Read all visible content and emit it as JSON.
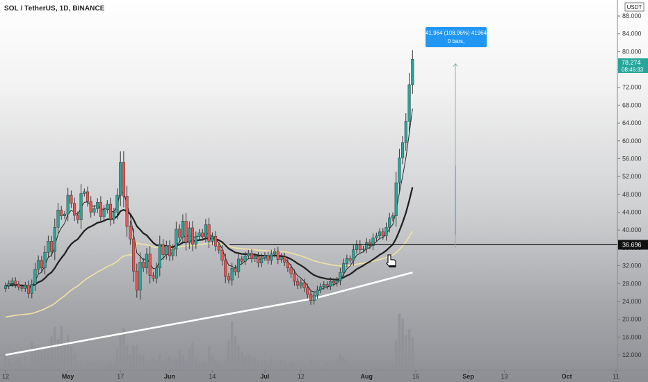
{
  "header": {
    "title": "SOL / TetherUS, 1D, BINANCE"
  },
  "price_axis": {
    "currency_badge": "USDT"
  },
  "measure_tooltip": {
    "line1": "41.964 (108.96%) 41964",
    "line2": "0 bars,"
  },
  "last_price_badge": {
    "price": "78.274",
    "countdown": "08:46:33"
  },
  "level_badge": {
    "value": "36.696"
  },
  "colors": {
    "up": "#26a69a",
    "down": "#ef5350",
    "ma_fast": "#2a2a2a",
    "ma_mid": "#222222",
    "ma_yellow": "#f2e3a1",
    "ma_white": "#ffffff",
    "tooltip_bg": "#2196f3",
    "last_price_bg": "#26a69a",
    "volume": "#8f9196"
  },
  "chart_data": {
    "type": "candlestick",
    "title": "SOL / TetherUS, 1D, BINANCE",
    "ylim": [
      8,
      92
    ],
    "y_ticks": [
      12,
      16,
      20,
      24,
      28,
      32,
      36,
      40,
      44,
      48,
      52,
      56,
      60,
      64,
      68,
      72,
      76,
      80,
      84,
      88
    ],
    "y_tick_labels": [
      "12.000",
      "16.000",
      "20.000",
      "24.000",
      "28.000",
      "32.000",
      "36.000",
      "40.000",
      "44.000",
      "48.000",
      "52.000",
      "56.000",
      "60.000",
      "64.000",
      "68.000",
      "72.000",
      "76.000",
      "80.000",
      "84.000",
      "88.000"
    ],
    "x_labels": [
      {
        "text": "12",
        "day": 0,
        "bold": false
      },
      {
        "text": "May",
        "day": 19,
        "bold": true
      },
      {
        "text": "17",
        "day": 35,
        "bold": false
      },
      {
        "text": "Jun",
        "day": 50,
        "bold": true
      },
      {
        "text": "14",
        "day": 63,
        "bold": false
      },
      {
        "text": "Jul",
        "day": 79,
        "bold": true
      },
      {
        "text": "12",
        "day": 90,
        "bold": false
      },
      {
        "text": "Aug",
        "day": 110,
        "bold": true
      },
      {
        "text": "16",
        "day": 125,
        "bold": false
      },
      {
        "text": "Sep",
        "day": 141,
        "bold": true
      },
      {
        "text": "13",
        "day": 152,
        "bold": false
      },
      {
        "text": "Oct",
        "day": 171,
        "bold": true
      },
      {
        "text": "11",
        "day": 186,
        "bold": false
      }
    ],
    "close_prices": [
      27.5,
      28.0,
      28.6,
      27.8,
      27.2,
      26.9,
      27.6,
      25.8,
      27.8,
      31.2,
      33.2,
      31.5,
      35.0,
      37.5,
      35.2,
      40.6,
      44.5,
      43.2,
      43.6,
      47.8,
      46.0,
      43.3,
      42.3,
      48.2,
      48.6,
      46.4,
      44.0,
      44.8,
      46.2,
      43.0,
      44.6,
      45.8,
      42.4,
      44.0,
      47.8,
      55.2,
      47.6,
      40.8,
      38.0,
      30.8,
      26.5,
      32.8,
      31.5,
      34.6,
      29.8,
      29.2,
      31.5,
      36.8,
      34.5,
      36.5,
      34.2,
      35.8,
      40.2,
      38.4,
      42.0,
      37.2,
      40.5,
      36.8,
      38.6,
      39.4,
      38.5,
      41.2,
      37.5,
      38.6,
      36.4,
      35.5,
      33.2,
      29.6,
      28.8,
      31.4,
      30.6,
      33.5,
      33.0,
      34.2,
      34.8,
      33.6,
      34.1,
      32.6,
      33.8,
      34.3,
      33.2,
      34.6,
      35.2,
      33.4,
      34.0,
      32.8,
      31.5,
      30.2,
      28.5,
      27.6,
      28.2,
      27.0,
      25.6,
      24.2,
      25.4,
      26.6,
      27.3,
      27.8,
      27.4,
      28.5,
      28.1,
      28.7,
      30.5,
      32.5,
      33.6,
      33.2,
      35.6,
      36.8,
      35.6,
      35.8,
      37.2,
      36.5,
      38.2,
      38.7,
      39.6,
      38.7,
      40.6,
      42.7,
      43.2,
      50.6,
      56.2,
      59.6,
      64.4,
      72.6,
      78.3
    ],
    "volumes": [
      2.2,
      1.6,
      1.2,
      1.4,
      1.9,
      1.1,
      2.1,
      1.3,
      4.3,
      3.7,
      3.2,
      2.9,
      3.4,
      3.5,
      5.1,
      6.6,
      4.7,
      6.7,
      4.2,
      5.3,
      3.6,
      2.4,
      1.4,
      1.0,
      0.9,
      1.3,
      1.0,
      1.2,
      0.7,
      0.9,
      0.8,
      1.2,
      1.3,
      1.0,
      3.3,
      5.3,
      6.3,
      3.8,
      2.4,
      3.7,
      3.8,
      2.4,
      2.3,
      1.2,
      1.0,
      1.9,
      1.5,
      2.5,
      1.6,
      1.8,
      2.1,
      1.6,
      1.9,
      3.0,
      2.3,
      1.6,
      3.3,
      4.2,
      2.0,
      1.3,
      1.3,
      1.2,
      3.7,
      2.2,
      1.6,
      1.2,
      1.0,
      1.6,
      4.5,
      7.4,
      5.2,
      3.8,
      2.7,
      2.2,
      2.5,
      2.1,
      1.8,
      1.5,
      1.3,
      1.6,
      1.2,
      1.8,
      1.0,
      0.9,
      1.6,
      1.3,
      0.9,
      1.3,
      1.0,
      0.8,
      1.2,
      0.8,
      0.6,
      1.7,
      1.2,
      1.0,
      0.7,
      0.9,
      1.1,
      0.9,
      0.8,
      1.6,
      2.3,
      1.9,
      1.2,
      0.8,
      1.0,
      1.1,
      0.9,
      0.8,
      0.7,
      0.7,
      0.8,
      0.6,
      0.7,
      0.8,
      0.9,
      1.0,
      1.2,
      4.6,
      8.6,
      7.8,
      5.3,
      6.2,
      4.9
    ]
  }
}
